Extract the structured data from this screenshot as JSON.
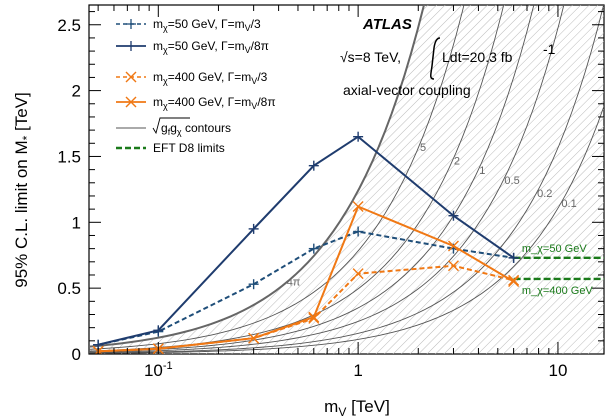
{
  "chart_data": {
    "type": "line",
    "xscale": "log",
    "xlim": [
      0.045,
      17
    ],
    "ylim": [
      0,
      2.65
    ],
    "xlabel": "m_V [TeV]",
    "ylabel": "95% C.L. limit on M_* [TeV]",
    "x_ticks": [
      {
        "value": 0.1,
        "label": "10^-1"
      },
      {
        "value": 1,
        "label": "1"
      },
      {
        "value": 10,
        "label": "10"
      }
    ],
    "y_ticks": [
      0,
      0.5,
      1,
      1.5,
      2,
      2.5
    ],
    "annotations": {
      "experiment": "ATLAS",
      "energy": "√s=8 TeV,",
      "lumi": "Ldt=20.3 fb",
      "lumi_exp": "-1",
      "coupling": "axial-vector coupling"
    },
    "legend": [
      {
        "label": "m_χ=50 GeV, Γ=m_V/3"
      },
      {
        "label": "m_χ=50 GeV, Γ=m_V/8π"
      },
      {
        "label": "m_χ=400 GeV, Γ=m_V/3"
      },
      {
        "label": "m_χ=400 GeV, Γ=m_V/8π"
      },
      {
        "label": "√(g_f g_χ) contours"
      },
      {
        "label": "EFT D8 limits"
      }
    ],
    "series": [
      {
        "name": "m_χ=50 GeV, Γ=m_V/3",
        "color": "#1f4e79",
        "dash": true,
        "marker": "plus",
        "x": [
          0.05,
          0.1,
          0.3,
          0.6,
          1,
          3,
          6
        ],
        "y": [
          0.07,
          0.17,
          0.53,
          0.8,
          0.93,
          0.8,
          0.73
        ]
      },
      {
        "name": "m_χ=50 GeV, Γ=m_V/8π",
        "color": "#1f3c6e",
        "dash": false,
        "marker": "plus",
        "x": [
          0.05,
          0.1,
          0.3,
          0.6,
          1,
          3,
          6
        ],
        "y": [
          0.07,
          0.18,
          0.95,
          1.43,
          1.65,
          1.05,
          0.73
        ]
      },
      {
        "name": "m_χ=400 GeV, Γ=m_V/3",
        "color": "#f07814",
        "dash": true,
        "marker": "x",
        "x": [
          0.05,
          0.1,
          0.3,
          0.6,
          1,
          3,
          6
        ],
        "y": [
          0.02,
          0.04,
          0.12,
          0.27,
          0.61,
          0.67,
          0.56
        ]
      },
      {
        "name": "m_χ=400 GeV, Γ=m_V/8π",
        "color": "#f07814",
        "dash": false,
        "marker": "x",
        "x": [
          0.05,
          0.1,
          0.3,
          0.6,
          1,
          3,
          6
        ],
        "y": [
          0.02,
          0.04,
          0.12,
          0.28,
          1.12,
          0.82,
          0.55
        ]
      }
    ],
    "contours": [
      {
        "label": "0.1",
        "value": 0.1
      },
      {
        "label": "0.2",
        "value": 0.2
      },
      {
        "label": "0.5",
        "value": 0.5
      },
      {
        "label": "1",
        "value": 1
      },
      {
        "label": "2",
        "value": 2
      },
      {
        "label": "5",
        "value": 5
      },
      {
        "label": "4π",
        "value": 12.566
      }
    ],
    "eft_limits": [
      {
        "label": "m_χ=50 GeV",
        "y": 0.73
      },
      {
        "label": "m_χ=400 GeV",
        "y": 0.57
      }
    ],
    "colors": {
      "eft": "#1a7a1a",
      "contour": "#555555",
      "unitarity": "#666666"
    }
  }
}
